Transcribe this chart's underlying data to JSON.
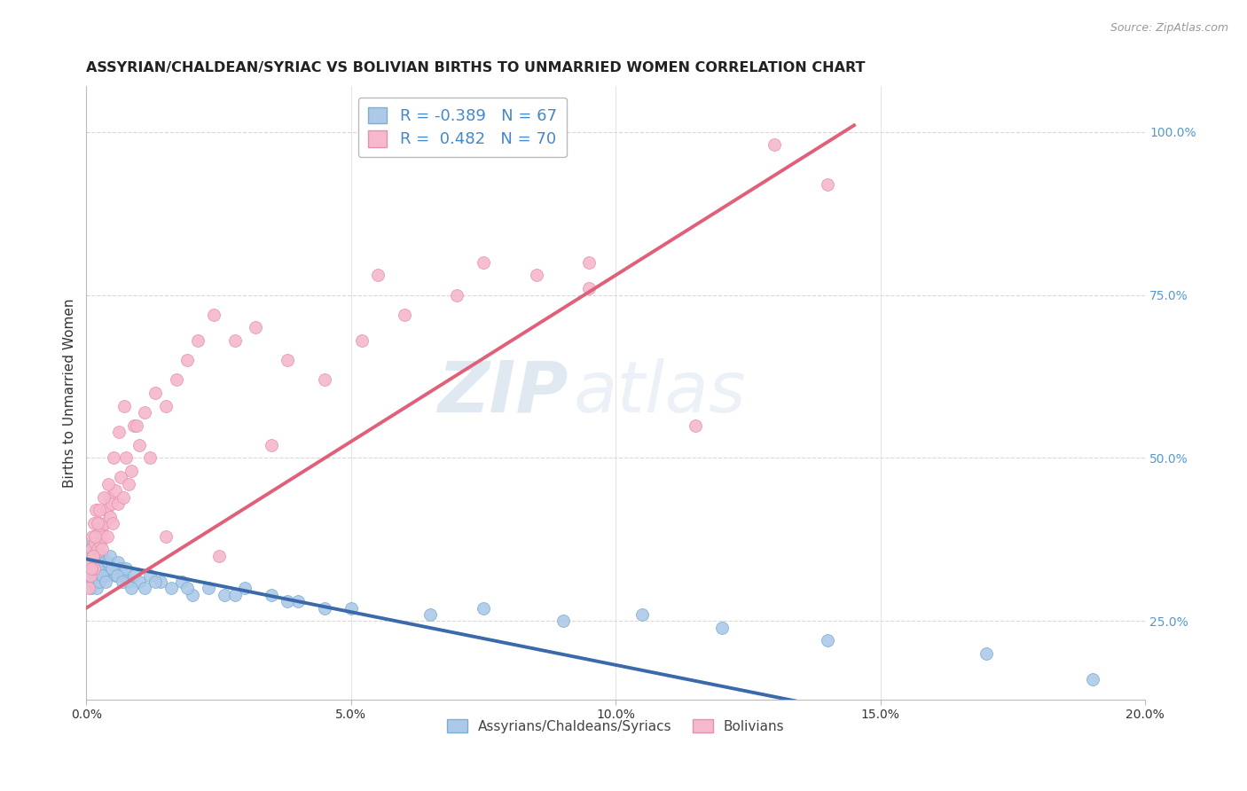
{
  "title": "ASSYRIAN/CHALDEAN/SYRIAC VS BOLIVIAN BIRTHS TO UNMARRIED WOMEN CORRELATION CHART",
  "source": "Source: ZipAtlas.com",
  "ylabel": "Births to Unmarried Women",
  "watermark_zip": "ZIP",
  "watermark_atlas": "atlas",
  "legend_labels": [
    "Assyrians/Chaldeans/Syriacs",
    "Bolivians"
  ],
  "r_blue": "-0.389",
  "n_blue": "67",
  "r_pink": "0.482",
  "n_pink": "70",
  "blue_scatter_x": [
    0.05,
    0.07,
    0.09,
    0.1,
    0.11,
    0.12,
    0.13,
    0.14,
    0.15,
    0.16,
    0.17,
    0.18,
    0.19,
    0.2,
    0.22,
    0.23,
    0.25,
    0.27,
    0.3,
    0.32,
    0.35,
    0.38,
    0.4,
    0.42,
    0.45,
    0.5,
    0.55,
    0.6,
    0.65,
    0.7,
    0.75,
    0.8,
    0.9,
    1.0,
    1.1,
    1.2,
    1.4,
    1.6,
    1.8,
    2.0,
    2.3,
    2.6,
    3.0,
    3.5,
    4.0,
    5.0,
    6.5,
    7.5,
    9.0,
    10.5,
    12.0,
    14.0,
    17.0,
    19.0,
    0.08,
    0.21,
    0.29,
    0.36,
    0.48,
    0.58,
    0.68,
    0.85,
    1.3,
    1.9,
    2.8,
    3.8,
    4.5
  ],
  "blue_scatter_y": [
    32,
    34,
    36,
    30,
    33,
    35,
    37,
    32,
    31,
    34,
    36,
    33,
    30,
    35,
    32,
    34,
    31,
    33,
    35,
    32,
    34,
    33,
    32,
    34,
    35,
    33,
    32,
    34,
    33,
    32,
    33,
    31,
    32,
    31,
    30,
    32,
    31,
    30,
    31,
    29,
    30,
    29,
    30,
    29,
    28,
    27,
    26,
    27,
    25,
    26,
    24,
    22,
    20,
    16,
    35,
    33,
    32,
    31,
    33,
    32,
    31,
    30,
    31,
    30,
    29,
    28,
    27
  ],
  "pink_scatter_x": [
    0.05,
    0.07,
    0.08,
    0.1,
    0.11,
    0.12,
    0.14,
    0.15,
    0.16,
    0.18,
    0.2,
    0.22,
    0.24,
    0.26,
    0.28,
    0.3,
    0.32,
    0.35,
    0.38,
    0.4,
    0.43,
    0.45,
    0.48,
    0.5,
    0.55,
    0.6,
    0.65,
    0.7,
    0.75,
    0.8,
    0.85,
    0.9,
    1.0,
    1.1,
    1.2,
    1.3,
    1.5,
    1.7,
    1.9,
    2.1,
    2.4,
    2.8,
    3.2,
    3.8,
    4.5,
    5.2,
    6.0,
    7.0,
    8.5,
    9.5,
    0.09,
    0.13,
    0.17,
    0.21,
    0.25,
    0.33,
    0.42,
    0.52,
    0.62,
    0.72,
    0.95,
    1.5,
    2.5,
    3.5,
    5.5,
    7.5,
    9.5,
    11.5,
    13.0,
    14.0
  ],
  "pink_scatter_y": [
    30,
    32,
    34,
    36,
    38,
    35,
    33,
    40,
    37,
    42,
    38,
    36,
    40,
    37,
    39,
    36,
    38,
    40,
    42,
    38,
    44,
    41,
    43,
    40,
    45,
    43,
    47,
    44,
    50,
    46,
    48,
    55,
    52,
    57,
    50,
    60,
    58,
    62,
    65,
    68,
    72,
    68,
    70,
    65,
    62,
    68,
    72,
    75,
    78,
    80,
    33,
    35,
    38,
    40,
    42,
    44,
    46,
    50,
    54,
    58,
    55,
    38,
    35,
    52,
    78,
    80,
    76,
    55,
    98,
    92
  ],
  "blue_line_x": [
    0.0,
    20.0
  ],
  "blue_line_y": [
    34.5,
    2.0
  ],
  "pink_line_x": [
    0.0,
    14.5
  ],
  "pink_line_y": [
    27.0,
    101.0
  ],
  "xmin": 0.0,
  "xmax": 20.0,
  "ymin": 13,
  "ymax": 107,
  "yticks": [
    25,
    50,
    75,
    100
  ],
  "ytick_labels": [
    "25.0%",
    "50.0%",
    "75.0%",
    "100.0%"
  ],
  "xticks": [
    0,
    5,
    10,
    15,
    20
  ],
  "xtick_labels": [
    "0.0%",
    "5.0%",
    "10.0%",
    "15.0%",
    "20.0%"
  ],
  "scatter_size": 100,
  "blue_fill": "#adc9e8",
  "pink_fill": "#f5b8cc",
  "blue_edge": "#7aaed4",
  "pink_edge": "#e891aa",
  "line_blue": "#3a6aaa",
  "line_pink": "#e0607a",
  "grid_color": "#d8d8d8",
  "background": "#ffffff",
  "title_color": "#222222",
  "axis_label_color": "#333333",
  "right_tick_color": "#5599cc",
  "source_color": "#999999",
  "legend_text_color": "#4488cc",
  "legend_r_color": "#4488cc",
  "legend_n_color": "#4488cc"
}
